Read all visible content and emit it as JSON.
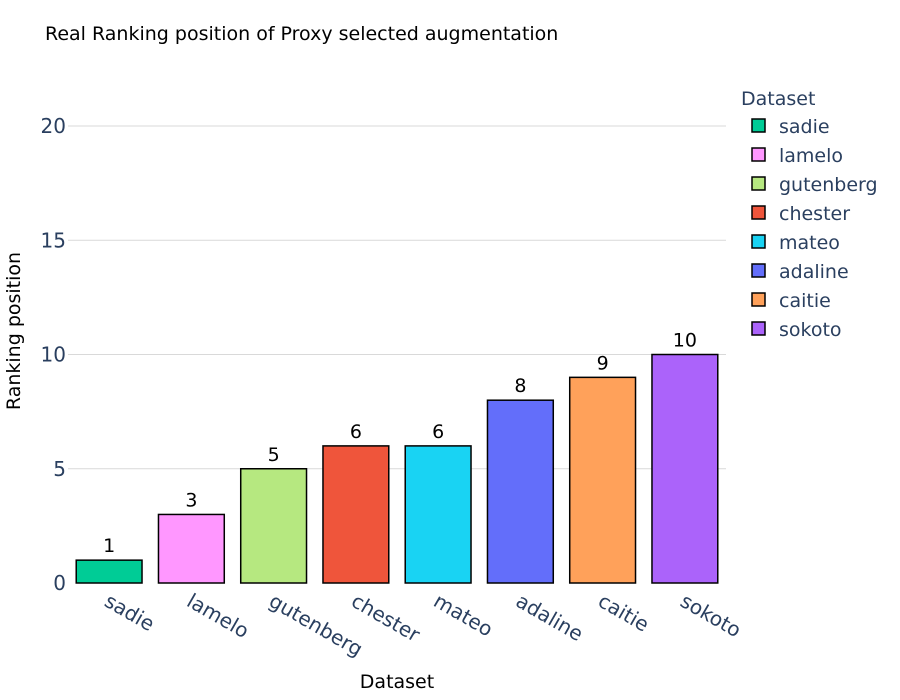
{
  "chart_data": {
    "type": "bar",
    "title": "Real Ranking position of Proxy selected augmentation",
    "xlabel": "Dataset",
    "ylabel": "Ranking position",
    "categories": [
      "sadie",
      "lamelo",
      "gutenberg",
      "chester",
      "mateo",
      "adaline",
      "caitie",
      "sokoto"
    ],
    "values": [
      1,
      3,
      5,
      6,
      6,
      8,
      9,
      10
    ],
    "colors": [
      "#00cc96",
      "#ff97ff",
      "#b6e880",
      "#ef553b",
      "#19d3f3",
      "#636efa",
      "#ffa15a",
      "#ab63fa"
    ],
    "ylim": [
      0,
      22
    ],
    "yticks": [
      0,
      5,
      10,
      15,
      20
    ],
    "grid": true,
    "legend": {
      "title": "Dataset",
      "position": "right",
      "entries": [
        "sadie",
        "lamelo",
        "gutenberg",
        "chester",
        "mateo",
        "adaline",
        "caitie",
        "sokoto"
      ]
    }
  }
}
